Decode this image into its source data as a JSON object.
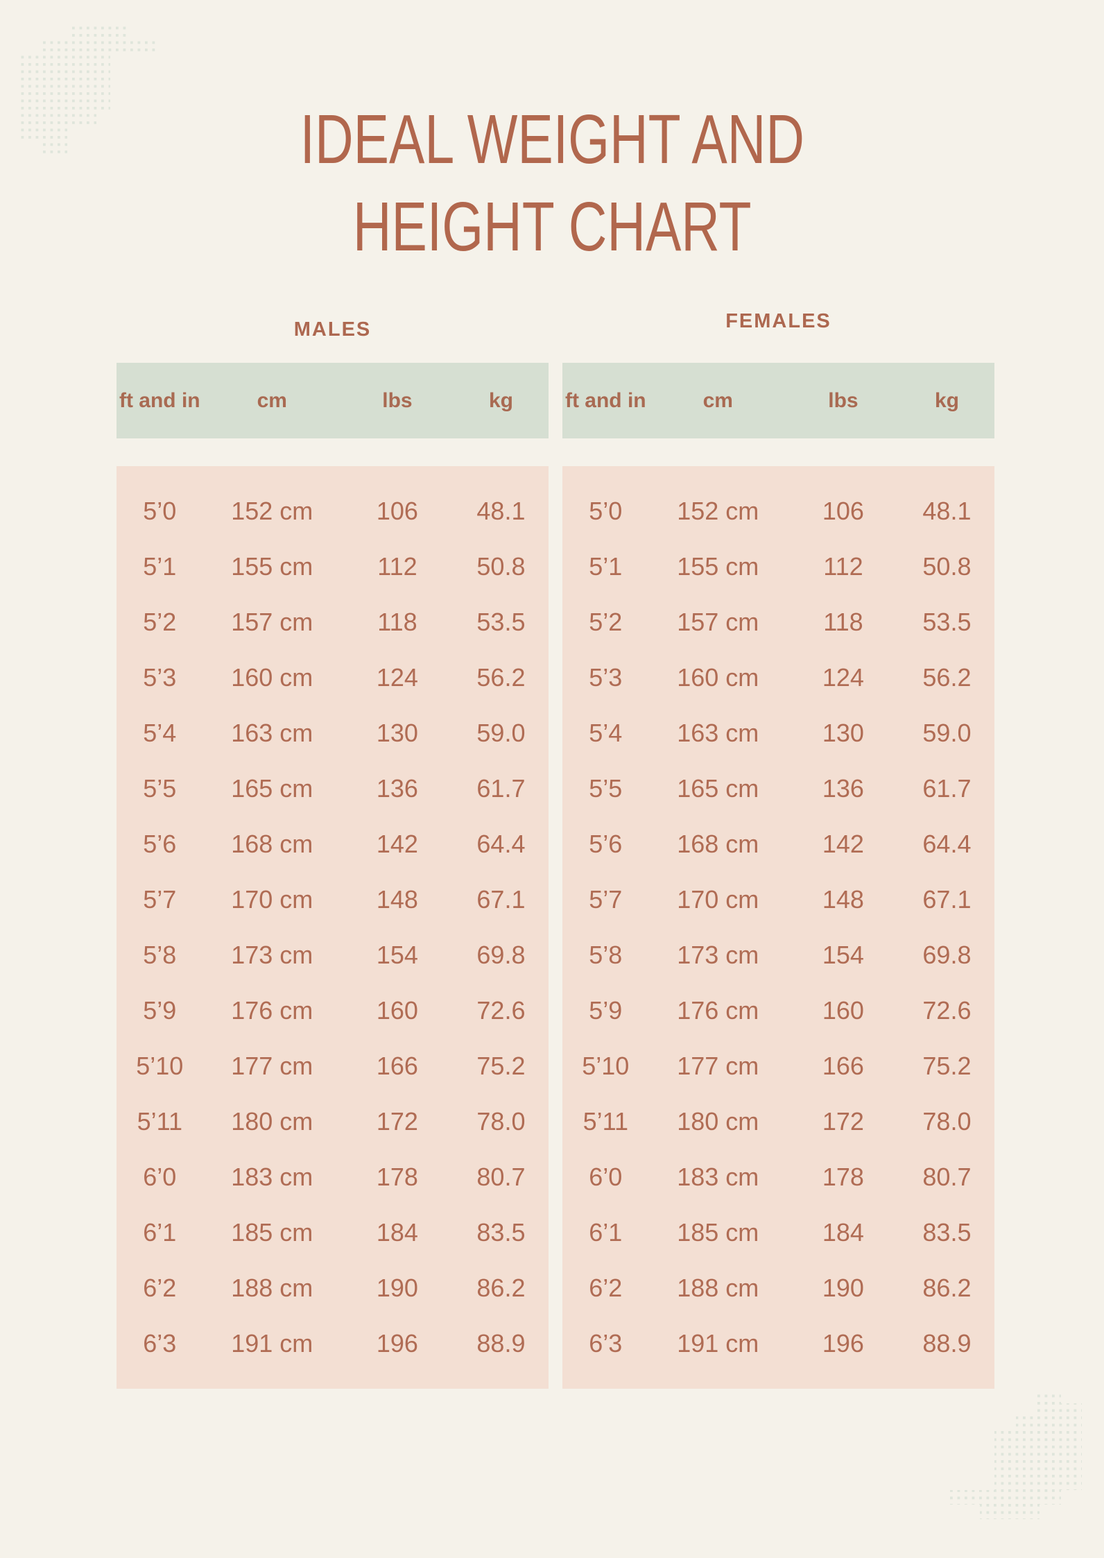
{
  "page": {
    "title_line1": "IDEAL WEIGHT AND",
    "title_line2": "HEIGHT CHART"
  },
  "columns": [
    "ft and in",
    "cm",
    "lbs",
    "kg"
  ],
  "tables": [
    {
      "label": "MALES",
      "rows": [
        [
          "5’0",
          "152 cm",
          "106",
          "48.1"
        ],
        [
          "5’1",
          "155 cm",
          "112",
          "50.8"
        ],
        [
          "5’2",
          "157 cm",
          "118",
          "53.5"
        ],
        [
          "5’3",
          "160 cm",
          "124",
          "56.2"
        ],
        [
          "5’4",
          "163 cm",
          "130",
          "59.0"
        ],
        [
          "5’5",
          "165 cm",
          "136",
          "61.7"
        ],
        [
          "5’6",
          "168 cm",
          "142",
          "64.4"
        ],
        [
          "5’7",
          "170 cm",
          "148",
          "67.1"
        ],
        [
          "5’8",
          "173 cm",
          "154",
          "69.8"
        ],
        [
          "5’9",
          "176 cm",
          "160",
          "72.6"
        ],
        [
          "5’10",
          "177 cm",
          "166",
          "75.2"
        ],
        [
          "5’11",
          "180 cm",
          "172",
          "78.0"
        ],
        [
          "6’0",
          "183 cm",
          "178",
          "80.7"
        ],
        [
          "6’1",
          "185 cm",
          "184",
          "83.5"
        ],
        [
          "6’2",
          "188 cm",
          "190",
          "86.2"
        ],
        [
          "6’3",
          "191 cm",
          "196",
          "88.9"
        ]
      ]
    },
    {
      "label": "FEMALES",
      "rows": [
        [
          "5’0",
          "152 cm",
          "106",
          "48.1"
        ],
        [
          "5’1",
          "155 cm",
          "112",
          "50.8"
        ],
        [
          "5’2",
          "157 cm",
          "118",
          "53.5"
        ],
        [
          "5’3",
          "160 cm",
          "124",
          "56.2"
        ],
        [
          "5’4",
          "163 cm",
          "130",
          "59.0"
        ],
        [
          "5’5",
          "165 cm",
          "136",
          "61.7"
        ],
        [
          "5’6",
          "168 cm",
          "142",
          "64.4"
        ],
        [
          "5’7",
          "170 cm",
          "148",
          "67.1"
        ],
        [
          "5’8",
          "173 cm",
          "154",
          "69.8"
        ],
        [
          "5’9",
          "176 cm",
          "160",
          "72.6"
        ],
        [
          "5’10",
          "177 cm",
          "166",
          "75.2"
        ],
        [
          "5’11",
          "180 cm",
          "172",
          "78.0"
        ],
        [
          "6’0",
          "183 cm",
          "178",
          "80.7"
        ],
        [
          "6’1",
          "185 cm",
          "184",
          "83.5"
        ],
        [
          "6’2",
          "188 cm",
          "190",
          "86.2"
        ],
        [
          "6’3",
          "191 cm",
          "196",
          "88.9"
        ]
      ]
    }
  ],
  "colors": {
    "accent_text": "#b1674d",
    "table_text": "#b06c54",
    "header_band": "#d6dfd2",
    "row_band": "#f3dfd3",
    "background": "#f5f2ea",
    "dots": "#dfe5db"
  },
  "chart_data": {
    "type": "table",
    "title": "IDEAL WEIGHT AND HEIGHT CHART",
    "columns": [
      "ft and in",
      "cm",
      "lbs",
      "kg"
    ],
    "groups": [
      {
        "name": "MALES",
        "rows": [
          [
            "5'0",
            152,
            106,
            48.1
          ],
          [
            "5'1",
            155,
            112,
            50.8
          ],
          [
            "5'2",
            157,
            118,
            53.5
          ],
          [
            "5'3",
            160,
            124,
            56.2
          ],
          [
            "5'4",
            163,
            130,
            59.0
          ],
          [
            "5'5",
            165,
            136,
            61.7
          ],
          [
            "5'6",
            168,
            142,
            64.4
          ],
          [
            "5'7",
            170,
            148,
            67.1
          ],
          [
            "5'8",
            173,
            154,
            69.8
          ],
          [
            "5'9",
            176,
            160,
            72.6
          ],
          [
            "5'10",
            177,
            166,
            75.2
          ],
          [
            "5'11",
            180,
            172,
            78.0
          ],
          [
            "6'0",
            183,
            178,
            80.7
          ],
          [
            "6'1",
            185,
            184,
            83.5
          ],
          [
            "6'2",
            188,
            190,
            86.2
          ],
          [
            "6'3",
            191,
            196,
            88.9
          ]
        ]
      },
      {
        "name": "FEMALES",
        "rows": [
          [
            "5'0",
            152,
            106,
            48.1
          ],
          [
            "5'1",
            155,
            112,
            50.8
          ],
          [
            "5'2",
            157,
            118,
            53.5
          ],
          [
            "5'3",
            160,
            124,
            56.2
          ],
          [
            "5'4",
            163,
            130,
            59.0
          ],
          [
            "5'5",
            165,
            136,
            61.7
          ],
          [
            "5'6",
            168,
            142,
            64.4
          ],
          [
            "5'7",
            170,
            148,
            67.1
          ],
          [
            "5'8",
            173,
            154,
            69.8
          ],
          [
            "5'9",
            176,
            160,
            72.6
          ],
          [
            "5'10",
            177,
            166,
            75.2
          ],
          [
            "5'11",
            180,
            172,
            78.0
          ],
          [
            "6'0",
            183,
            178,
            80.7
          ],
          [
            "6'1",
            185,
            184,
            83.5
          ],
          [
            "6'2",
            188,
            190,
            86.2
          ],
          [
            "6'3",
            191,
            196,
            88.9
          ]
        ]
      }
    ]
  }
}
